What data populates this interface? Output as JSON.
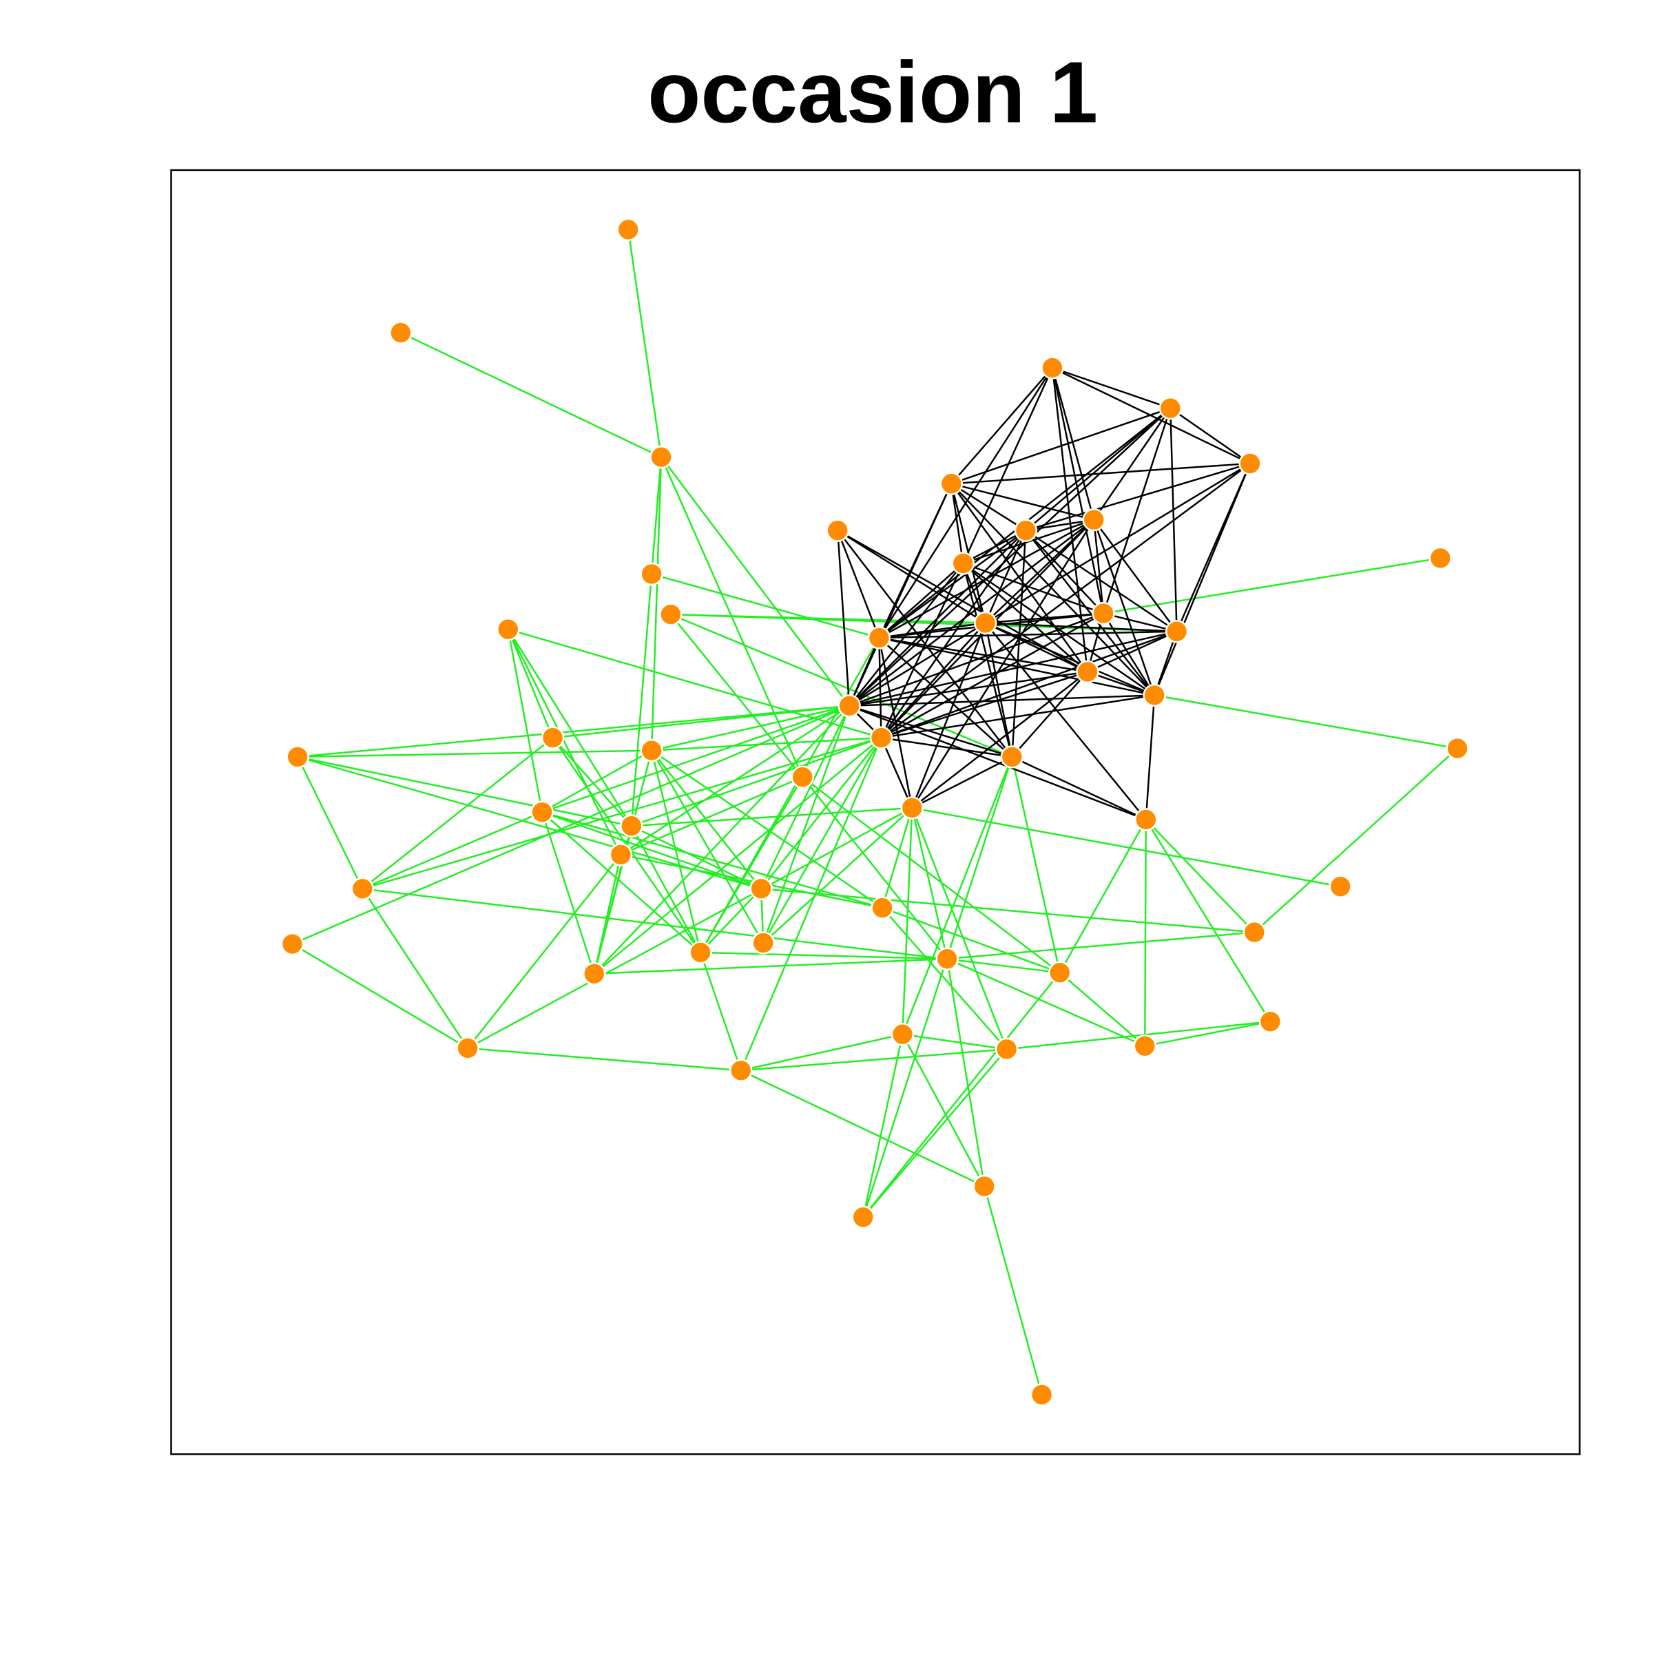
{
  "title": "occasion 1"
}
